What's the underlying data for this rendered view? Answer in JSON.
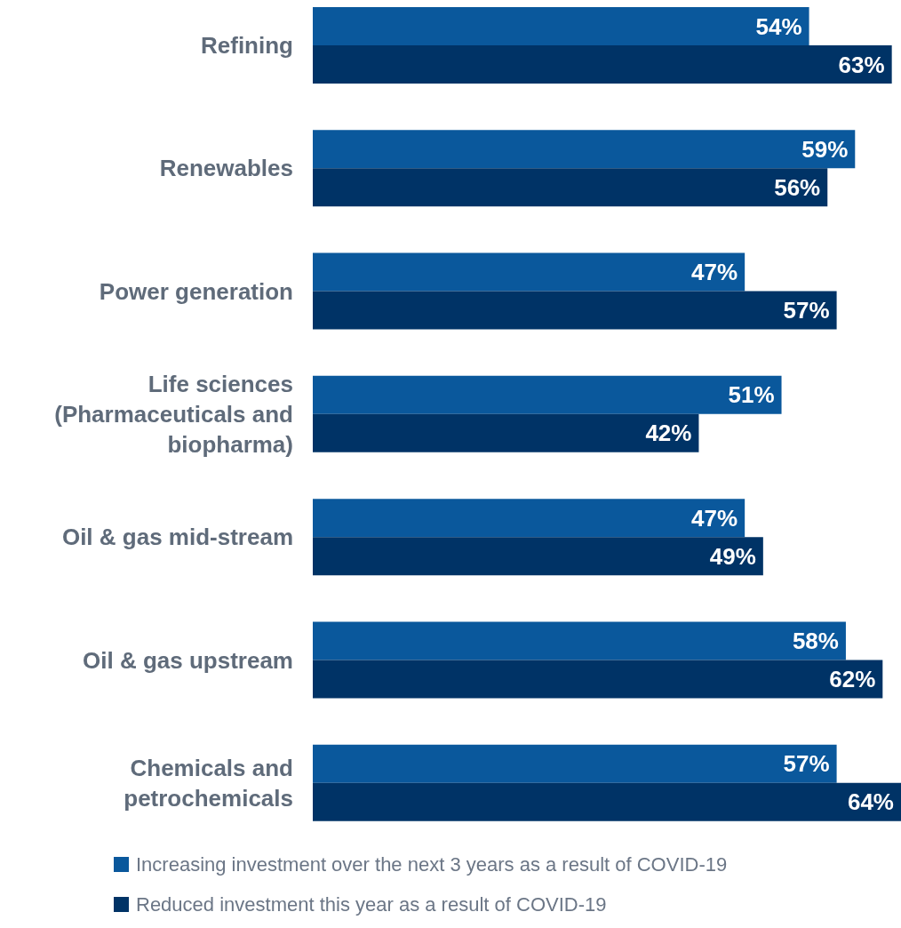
{
  "chart_data": {
    "type": "bar",
    "orientation": "horizontal",
    "categories": [
      "Refining",
      "Renewables",
      "Power generation",
      "Life sciences (Pharmaceuticals and biopharma)",
      "Oil & gas mid-stream",
      "Oil & gas upstream",
      "Chemicals and petrochemicals"
    ],
    "series": [
      {
        "name": "Increasing investment over the next 3 years as a result of COVID-19",
        "color": "#0a589c",
        "values": [
          54,
          59,
          47,
          51,
          47,
          58,
          57
        ],
        "value_labels": [
          "54%",
          "59%",
          "47%",
          "51%",
          "47%",
          "58%",
          "57%"
        ]
      },
      {
        "name": "Reduced investment this year as a result of COVID-19",
        "color": "#003366",
        "values": [
          63,
          56,
          57,
          42,
          49,
          62,
          64
        ],
        "value_labels": [
          "63%",
          "56%",
          "57%",
          "42%",
          "49%",
          "62%",
          "64%"
        ]
      }
    ],
    "tick_labels": "y",
    "legend": "bottom",
    "grid": false
  }
}
